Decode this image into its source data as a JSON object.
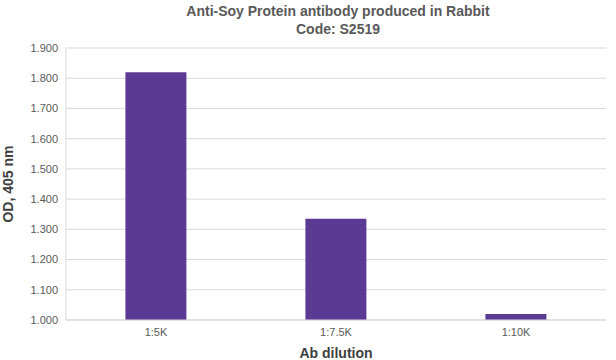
{
  "chart_data": {
    "type": "bar",
    "title": "Anti-Soy Protein antibody produced in Rabbit",
    "subtitle": "Code: S2519",
    "x_label": "Ab dilution",
    "y_label": "OD, 405 nm",
    "categories": [
      "1:5K",
      "1:7.5K",
      "1:10K"
    ],
    "values": [
      1.82,
      1.335,
      1.02
    ],
    "color": "#5b3a94",
    "ylim": [
      1,
      1.9
    ],
    "yticks": [
      {
        "value": 1,
        "label": "1.000"
      },
      {
        "value": 1.1,
        "label": "1.100"
      },
      {
        "value": 1.2,
        "label": "1.200"
      },
      {
        "value": 1.3,
        "label": "1.300"
      },
      {
        "value": 1.4,
        "label": "1.400"
      },
      {
        "value": 1.5,
        "label": "1.500"
      },
      {
        "value": 1.6,
        "label": "1.600"
      },
      {
        "value": 1.7,
        "label": "1.700"
      },
      {
        "value": 1.8,
        "label": "1.800"
      },
      {
        "value": 1.9,
        "label": "1.900"
      }
    ],
    "grid": true
  }
}
